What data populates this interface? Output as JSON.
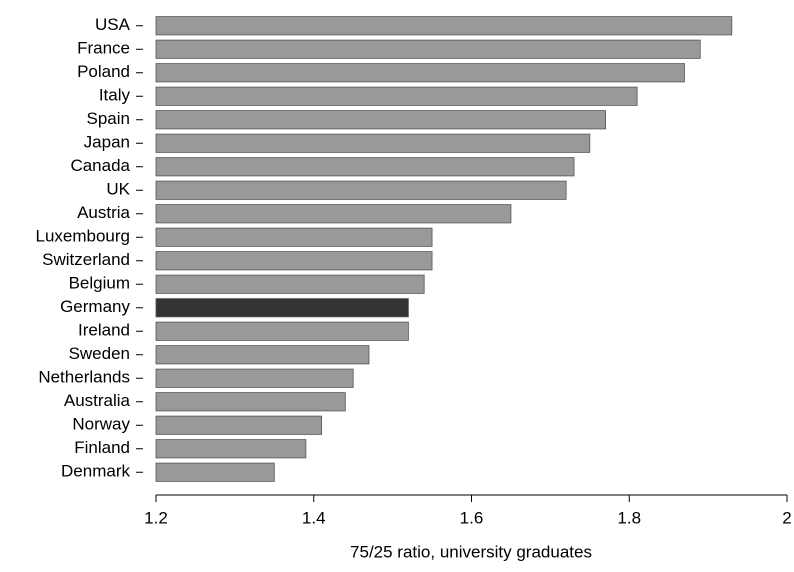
{
  "chart_data": {
    "type": "hbar",
    "x_label": "75/25 ratio, university graduates",
    "categories": [
      "USA",
      "France",
      "Poland",
      "Italy",
      "Spain",
      "Japan",
      "Canada",
      "UK",
      "Austria",
      "Luxembourg",
      "Switzerland",
      "Belgium",
      "Germany",
      "Ireland",
      "Sweden",
      "Netherlands",
      "Australia",
      "Norway",
      "Finland",
      "Denmark"
    ],
    "values": [
      1.93,
      1.89,
      1.87,
      1.81,
      1.77,
      1.75,
      1.73,
      1.72,
      1.65,
      1.55,
      1.55,
      1.54,
      1.52,
      1.52,
      1.47,
      1.45,
      1.44,
      1.41,
      1.39,
      1.35
    ],
    "colors": [
      "#999999",
      "#999999",
      "#999999",
      "#999999",
      "#999999",
      "#999999",
      "#999999",
      "#999999",
      "#999999",
      "#999999",
      "#999999",
      "#999999",
      "#333333",
      "#999999",
      "#999999",
      "#999999",
      "#999999",
      "#999999",
      "#999999",
      "#999999"
    ],
    "xlim": [
      1.2,
      2
    ],
    "xticks": [
      1.2,
      1.4,
      1.6,
      1.8,
      2
    ]
  }
}
